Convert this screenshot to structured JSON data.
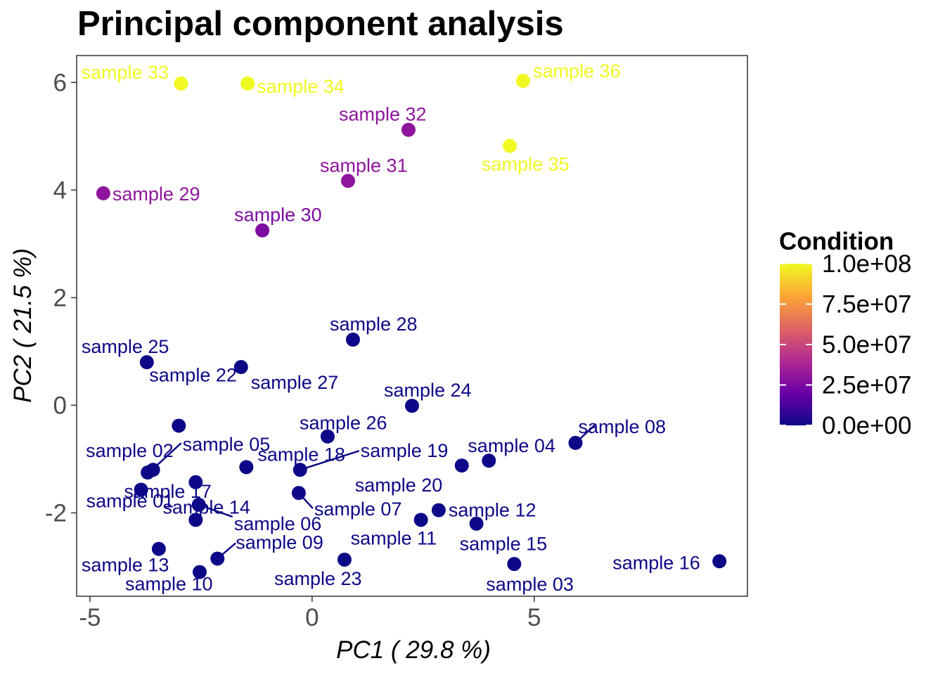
{
  "chart_data": {
    "type": "scatter",
    "title": "Principal component analysis",
    "xlabel": "PC1 ( 29.8 %)",
    "ylabel": "PC2 ( 21.5 %)",
    "xlim": [
      -5.3,
      9.8
    ],
    "ylim": [
      -3.55,
      6.5
    ],
    "x_ticks": [
      -5,
      0,
      5
    ],
    "x_tick_labels": [
      "-5",
      "0",
      "5"
    ],
    "y_ticks": [
      -2,
      0,
      2,
      4,
      6
    ],
    "y_tick_labels": [
      "-2",
      "0",
      "2",
      "4",
      "6"
    ],
    "grid": false,
    "legend": {
      "title": "Condition",
      "position": "right",
      "type": "colorbar",
      "range": [
        0,
        100000000
      ],
      "tick_values": [
        0,
        25000000,
        50000000,
        75000000,
        100000000
      ],
      "tick_labels": [
        "0.0e+00",
        "2.5e+07",
        "5.0e+07",
        "7.5e+07",
        "1.0e+08"
      ],
      "colors": [
        "#0d0887",
        "#6a00a8",
        "#b12a90",
        "#e16462",
        "#fca636",
        "#f0f921"
      ]
    },
    "points": [
      {
        "label": "sample 01",
        "x": -3.85,
        "y": -1.57,
        "condition": 0
      },
      {
        "label": "sample 02",
        "x": -3.7,
        "y": -1.25,
        "condition": 0
      },
      {
        "label": "sample 03",
        "x": 4.55,
        "y": -2.95,
        "condition": 0
      },
      {
        "label": "sample 04",
        "x": 3.98,
        "y": -1.03,
        "condition": 0
      },
      {
        "label": "sample 05",
        "x": -3.58,
        "y": -1.2,
        "condition": 0
      },
      {
        "label": "sample 06",
        "x": -2.55,
        "y": -1.85,
        "condition": 0
      },
      {
        "label": "sample 07",
        "x": -0.3,
        "y": -1.63,
        "condition": 0
      },
      {
        "label": "sample 08",
        "x": 5.93,
        "y": -0.7,
        "condition": 0
      },
      {
        "label": "sample 09",
        "x": -2.13,
        "y": -2.85,
        "condition": 0
      },
      {
        "label": "sample 10",
        "x": -2.53,
        "y": -3.1,
        "condition": 0
      },
      {
        "label": "sample 11",
        "x": 2.45,
        "y": -2.13,
        "condition": 0
      },
      {
        "label": "sample 12",
        "x": 2.85,
        "y": -1.95,
        "condition": 0
      },
      {
        "label": "sample 13",
        "x": -3.45,
        "y": -2.67,
        "condition": 0
      },
      {
        "label": "sample 14",
        "x": -2.62,
        "y": -2.13,
        "condition": 0
      },
      {
        "label": "sample 15",
        "x": 3.7,
        "y": -2.2,
        "condition": 0
      },
      {
        "label": "sample 16",
        "x": 9.17,
        "y": -2.9,
        "condition": 0
      },
      {
        "label": "sample 17",
        "x": -2.62,
        "y": -1.43,
        "condition": 0
      },
      {
        "label": "sample 18",
        "x": -1.48,
        "y": -1.15,
        "condition": 0
      },
      {
        "label": "sample 19",
        "x": -0.27,
        "y": -1.2,
        "condition": 0
      },
      {
        "label": "sample 20",
        "x": 3.37,
        "y": -1.12,
        "condition": 0
      },
      {
        "label": "sample 22",
        "x": -3.0,
        "y": -0.38,
        "condition": 0
      },
      {
        "label": "sample 23",
        "x": 0.73,
        "y": -2.87,
        "condition": 0
      },
      {
        "label": "sample 24",
        "x": 2.25,
        "y": -0.01,
        "condition": 0
      },
      {
        "label": "sample 25",
        "x": -3.72,
        "y": 0.8,
        "condition": 0
      },
      {
        "label": "sample 26",
        "x": 0.35,
        "y": -0.58,
        "condition": 0
      },
      {
        "label": "sample 27",
        "x": -1.6,
        "y": 0.71,
        "condition": 0
      },
      {
        "label": "sample 28",
        "x": 0.92,
        "y": 1.22,
        "condition": 0
      },
      {
        "label": "sample 29",
        "x": -4.7,
        "y": 3.94,
        "condition": 30000000
      },
      {
        "label": "sample 30",
        "x": -1.12,
        "y": 3.25,
        "condition": 25000000
      },
      {
        "label": "sample 31",
        "x": 0.81,
        "y": 4.17,
        "condition": 30000000
      },
      {
        "label": "sample 32",
        "x": 2.17,
        "y": 5.12,
        "condition": 30000000
      },
      {
        "label": "sample 33",
        "x": -2.95,
        "y": 5.98,
        "condition": 100000000
      },
      {
        "label": "sample 34",
        "x": -1.45,
        "y": 5.98,
        "condition": 100000000
      },
      {
        "label": "sample 35",
        "x": 4.45,
        "y": 4.82,
        "condition": 100000000
      },
      {
        "label": "sample 36",
        "x": 4.75,
        "y": 6.03,
        "condition": 100000000
      }
    ]
  }
}
